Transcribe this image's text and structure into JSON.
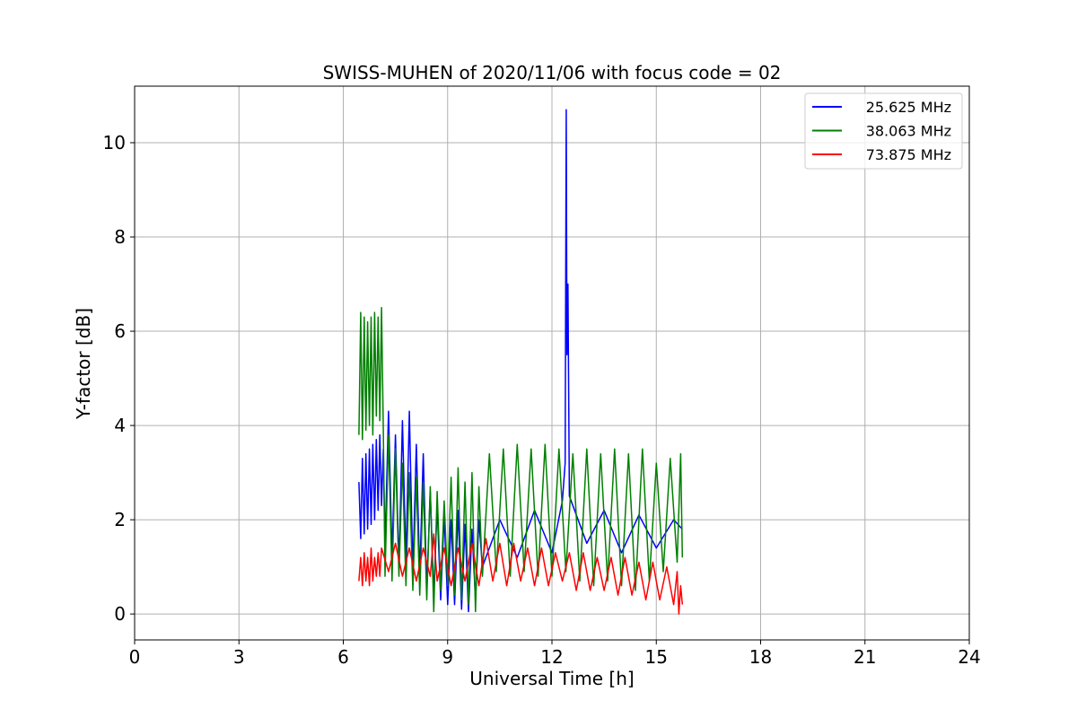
{
  "chart_data": {
    "type": "line",
    "title": "SWISS-MUHEN of 2020/11/06 with focus code = 02",
    "xlabel": "Universal Time [h]",
    "ylabel": "Y-factor [dB]",
    "xlim": [
      0,
      24
    ],
    "ylim": [
      -0.55,
      11.2
    ],
    "xticks": [
      0,
      3,
      6,
      9,
      12,
      15,
      18,
      21,
      24
    ],
    "yticks": [
      0,
      2,
      4,
      6,
      8,
      10
    ],
    "grid": true,
    "legend_position": "top-right",
    "series": [
      {
        "name": "25.625 MHz",
        "color": "#0000ff",
        "points": [
          [
            6.45,
            2.8
          ],
          [
            6.5,
            1.6
          ],
          [
            6.55,
            3.3
          ],
          [
            6.6,
            1.7
          ],
          [
            6.65,
            3.4
          ],
          [
            6.7,
            1.8
          ],
          [
            6.75,
            3.5
          ],
          [
            6.8,
            1.9
          ],
          [
            6.85,
            3.6
          ],
          [
            6.9,
            2.0
          ],
          [
            6.95,
            3.7
          ],
          [
            7.0,
            2.2
          ],
          [
            7.05,
            3.8
          ],
          [
            7.1,
            2.3
          ],
          [
            7.15,
            3.5
          ],
          [
            7.2,
            1.4
          ],
          [
            7.3,
            4.3
          ],
          [
            7.4,
            1.2
          ],
          [
            7.5,
            3.8
          ],
          [
            7.6,
            1.0
          ],
          [
            7.7,
            4.1
          ],
          [
            7.8,
            1.1
          ],
          [
            7.9,
            4.3
          ],
          [
            8.0,
            0.9
          ],
          [
            8.1,
            3.6
          ],
          [
            8.2,
            0.8
          ],
          [
            8.3,
            3.4
          ],
          [
            8.4,
            0.5
          ],
          [
            8.5,
            2.6
          ],
          [
            8.6,
            0.4
          ],
          [
            8.7,
            2.3
          ],
          [
            8.8,
            0.3
          ],
          [
            8.9,
            2.1
          ],
          [
            9.0,
            0.2
          ],
          [
            9.1,
            2.0
          ],
          [
            9.2,
            0.2
          ],
          [
            9.3,
            2.2
          ],
          [
            9.4,
            0.1
          ],
          [
            9.5,
            1.9
          ],
          [
            9.6,
            0.05
          ],
          [
            9.7,
            1.8
          ],
          [
            9.8,
            0.3
          ],
          [
            9.9,
            2.0
          ],
          [
            10.0,
            1.0
          ],
          [
            10.5,
            2.0
          ],
          [
            11.0,
            1.2
          ],
          [
            11.5,
            2.2
          ],
          [
            12.0,
            1.3
          ],
          [
            12.3,
            2.4
          ],
          [
            12.38,
            3.2
          ],
          [
            12.41,
            10.7
          ],
          [
            12.43,
            5.5
          ],
          [
            12.46,
            7.0
          ],
          [
            12.5,
            2.5
          ],
          [
            13.0,
            1.5
          ],
          [
            13.5,
            2.2
          ],
          [
            14.0,
            1.3
          ],
          [
            14.5,
            2.1
          ],
          [
            15.0,
            1.4
          ],
          [
            15.5,
            2.0
          ],
          [
            15.75,
            1.8
          ]
        ]
      },
      {
        "name": "38.063 MHz",
        "color": "#008000",
        "points": [
          [
            6.45,
            3.8
          ],
          [
            6.5,
            6.4
          ],
          [
            6.55,
            3.7
          ],
          [
            6.6,
            6.3
          ],
          [
            6.65,
            3.9
          ],
          [
            6.7,
            6.2
          ],
          [
            6.75,
            4.0
          ],
          [
            6.8,
            6.3
          ],
          [
            6.85,
            3.8
          ],
          [
            6.9,
            6.4
          ],
          [
            6.95,
            4.2
          ],
          [
            7.0,
            6.3
          ],
          [
            7.05,
            4.1
          ],
          [
            7.1,
            6.5
          ],
          [
            7.15,
            3.9
          ],
          [
            7.2,
            0.8
          ],
          [
            7.3,
            3.8
          ],
          [
            7.4,
            0.7
          ],
          [
            7.5,
            3.5
          ],
          [
            7.6,
            0.8
          ],
          [
            7.7,
            3.2
          ],
          [
            7.8,
            0.6
          ],
          [
            7.9,
            3.0
          ],
          [
            8.0,
            0.5
          ],
          [
            8.1,
            2.9
          ],
          [
            8.2,
            0.4
          ],
          [
            8.3,
            2.8
          ],
          [
            8.4,
            0.3
          ],
          [
            8.5,
            2.7
          ],
          [
            8.6,
            0.05
          ],
          [
            8.7,
            2.6
          ],
          [
            8.8,
            0.5
          ],
          [
            8.9,
            2.4
          ],
          [
            9.0,
            0.6
          ],
          [
            9.1,
            2.9
          ],
          [
            9.2,
            0.4
          ],
          [
            9.3,
            3.1
          ],
          [
            9.4,
            0.3
          ],
          [
            9.5,
            2.8
          ],
          [
            9.6,
            0.2
          ],
          [
            9.7,
            3.0
          ],
          [
            9.8,
            0.05
          ],
          [
            9.9,
            2.7
          ],
          [
            10.0,
            0.8
          ],
          [
            10.2,
            3.4
          ],
          [
            10.4,
            0.9
          ],
          [
            10.6,
            3.5
          ],
          [
            10.8,
            0.8
          ],
          [
            11.0,
            3.6
          ],
          [
            11.2,
            0.9
          ],
          [
            11.4,
            3.5
          ],
          [
            11.6,
            0.8
          ],
          [
            11.8,
            3.6
          ],
          [
            12.0,
            0.8
          ],
          [
            12.2,
            3.5
          ],
          [
            12.4,
            0.9
          ],
          [
            12.6,
            3.4
          ],
          [
            12.8,
            0.7
          ],
          [
            13.0,
            3.5
          ],
          [
            13.2,
            0.6
          ],
          [
            13.4,
            3.4
          ],
          [
            13.6,
            0.7
          ],
          [
            13.8,
            3.5
          ],
          [
            14.0,
            0.6
          ],
          [
            14.2,
            3.4
          ],
          [
            14.4,
            0.5
          ],
          [
            14.6,
            3.5
          ],
          [
            14.8,
            0.7
          ],
          [
            15.0,
            3.2
          ],
          [
            15.2,
            0.9
          ],
          [
            15.4,
            3.3
          ],
          [
            15.6,
            1.1
          ],
          [
            15.7,
            3.4
          ],
          [
            15.75,
            1.2
          ]
        ]
      },
      {
        "name": "73.875 MHz",
        "color": "#ff0000",
        "points": [
          [
            6.45,
            0.7
          ],
          [
            6.5,
            1.2
          ],
          [
            6.55,
            0.6
          ],
          [
            6.6,
            1.3
          ],
          [
            6.65,
            0.7
          ],
          [
            6.7,
            1.2
          ],
          [
            6.75,
            0.6
          ],
          [
            6.8,
            1.4
          ],
          [
            6.85,
            0.7
          ],
          [
            6.9,
            1.2
          ],
          [
            6.95,
            0.8
          ],
          [
            7.0,
            1.3
          ],
          [
            7.05,
            0.8
          ],
          [
            7.1,
            1.4
          ],
          [
            7.3,
            0.9
          ],
          [
            7.5,
            1.5
          ],
          [
            7.7,
            0.8
          ],
          [
            7.9,
            1.4
          ],
          [
            8.1,
            0.7
          ],
          [
            8.3,
            1.4
          ],
          [
            8.5,
            0.8
          ],
          [
            8.6,
            1.7
          ],
          [
            8.7,
            0.7
          ],
          [
            8.9,
            1.4
          ],
          [
            9.1,
            0.6
          ],
          [
            9.3,
            1.4
          ],
          [
            9.5,
            0.7
          ],
          [
            9.7,
            1.5
          ],
          [
            9.9,
            0.6
          ],
          [
            10.1,
            1.6
          ],
          [
            10.3,
            0.7
          ],
          [
            10.5,
            1.5
          ],
          [
            10.7,
            0.6
          ],
          [
            10.9,
            1.5
          ],
          [
            11.1,
            0.7
          ],
          [
            11.3,
            1.4
          ],
          [
            11.5,
            0.6
          ],
          [
            11.7,
            1.4
          ],
          [
            11.9,
            0.6
          ],
          [
            12.1,
            1.3
          ],
          [
            12.3,
            0.7
          ],
          [
            12.5,
            1.3
          ],
          [
            12.7,
            0.5
          ],
          [
            12.9,
            1.3
          ],
          [
            13.1,
            0.5
          ],
          [
            13.3,
            1.2
          ],
          [
            13.5,
            0.5
          ],
          [
            13.7,
            1.2
          ],
          [
            13.9,
            0.4
          ],
          [
            14.1,
            1.2
          ],
          [
            14.3,
            0.4
          ],
          [
            14.5,
            1.1
          ],
          [
            14.7,
            0.3
          ],
          [
            14.9,
            1.1
          ],
          [
            15.1,
            0.3
          ],
          [
            15.3,
            1.0
          ],
          [
            15.5,
            0.2
          ],
          [
            15.6,
            0.9
          ],
          [
            15.65,
            0.0
          ],
          [
            15.7,
            0.6
          ],
          [
            15.75,
            0.2
          ]
        ]
      }
    ]
  }
}
